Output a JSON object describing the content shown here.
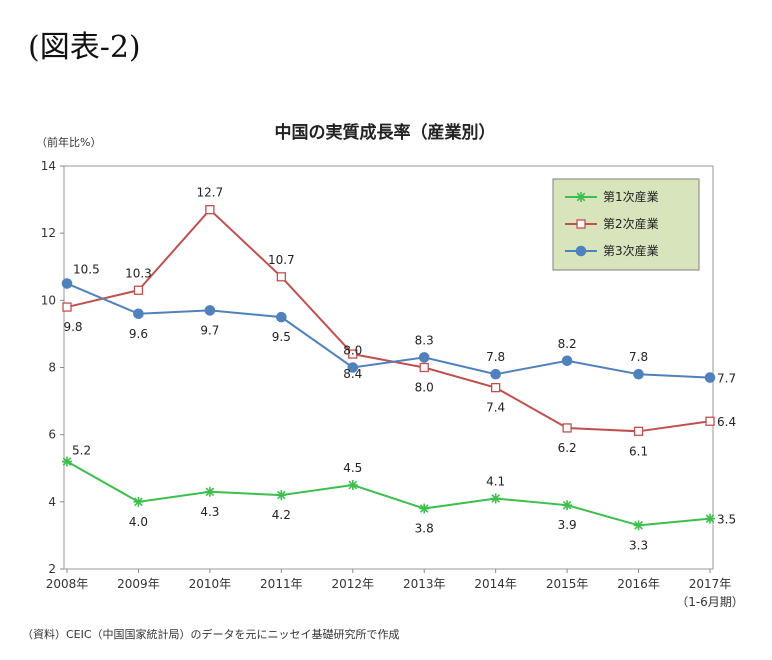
{
  "figure_label": "(図表-2)",
  "source_note": "（資料）CEIC（中国国家統計局）のデータを元にニッセイ基礎研究所で作成",
  "chart_data": {
    "type": "line",
    "title": "中国の実質成長率（産業別）",
    "ylabel": "（前年比%）",
    "xlabel": "",
    "categories": [
      "2008年",
      "2009年",
      "2010年",
      "2011年",
      "2012年",
      "2013年",
      "2014年",
      "2015年",
      "2016年",
      "2017年"
    ],
    "category_sublabel": "（1-6月期）",
    "ylim": [
      2,
      14
    ],
    "yticks": [
      2,
      4,
      6,
      8,
      10,
      12,
      14
    ],
    "grid": false,
    "legend_position": "top-right",
    "series": [
      {
        "name": "第1次産業",
        "color": "#3cbf4c",
        "marker": "asterisk",
        "values": [
          5.2,
          4.0,
          4.3,
          4.2,
          4.5,
          3.8,
          4.1,
          3.9,
          3.3,
          3.5
        ],
        "labels": [
          "5.2",
          "4.0",
          "4.3",
          "4.2",
          "4.5",
          "3.8",
          "4.1",
          "3.9",
          "3.3",
          "3.5"
        ]
      },
      {
        "name": "第2次産業",
        "color": "#c0504d",
        "marker": "square-open",
        "values": [
          9.8,
          10.3,
          12.7,
          10.7,
          8.4,
          8.0,
          7.4,
          6.2,
          6.1,
          6.4
        ],
        "labels": [
          "9.8",
          "10.3",
          "12.7",
          "10.7",
          "8.4",
          "8.0",
          "7.4",
          "6.2",
          "6.1",
          "6.4"
        ]
      },
      {
        "name": "第3次産業",
        "color": "#4f81bd",
        "marker": "circle",
        "values": [
          10.5,
          9.6,
          9.7,
          9.5,
          8.0,
          8.3,
          7.8,
          8.2,
          7.8,
          7.7
        ],
        "labels": [
          "10.5",
          "9.6",
          "9.7",
          "9.5",
          "8.0",
          "8.3",
          "7.8",
          "8.2",
          "7.8",
          "7.7"
        ]
      }
    ]
  }
}
